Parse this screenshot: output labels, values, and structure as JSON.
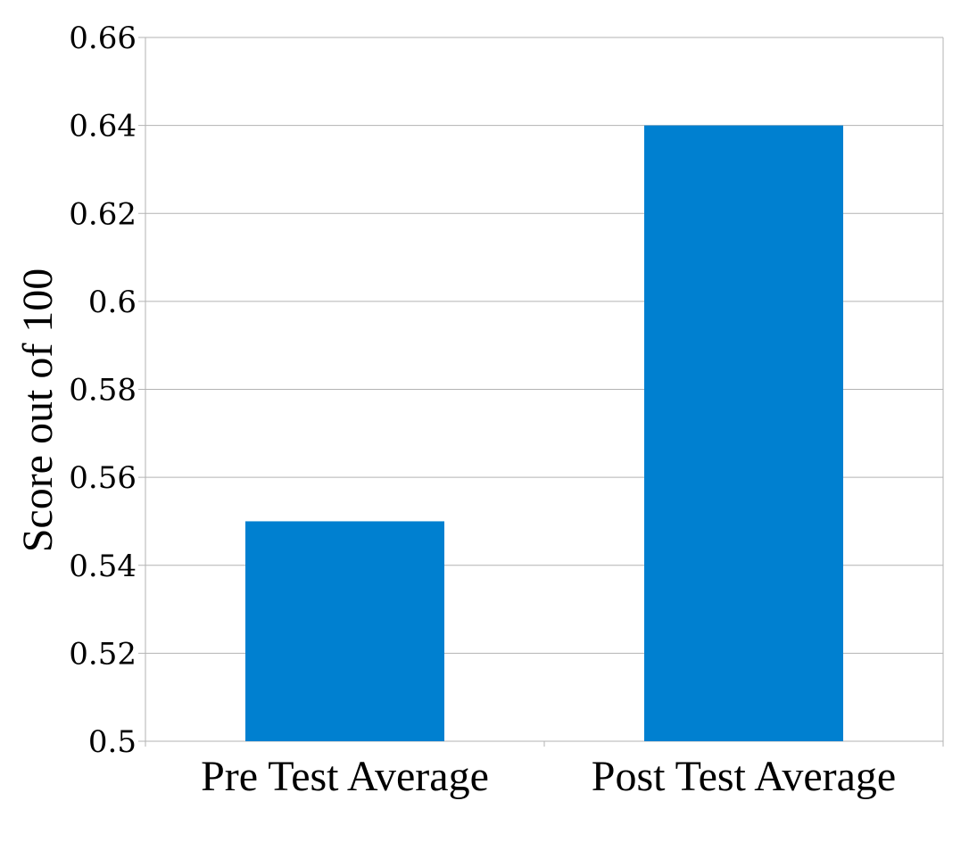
{
  "chart_data": {
    "type": "bar",
    "title": "",
    "xlabel": "",
    "ylabel": "Score out of 100",
    "categories": [
      "Pre Test Average",
      "Post Test Average"
    ],
    "values": [
      0.55,
      0.64
    ],
    "ylim": [
      0.5,
      0.66
    ],
    "yticks": [
      "0.5",
      "0.52",
      "0.54",
      "0.56",
      "0.58",
      "0.6",
      "0.62",
      "0.64",
      "0.66"
    ],
    "grid": true,
    "legend": "none",
    "bar_color": "#0080D0",
    "gridline_color": "#b3b3b3"
  }
}
